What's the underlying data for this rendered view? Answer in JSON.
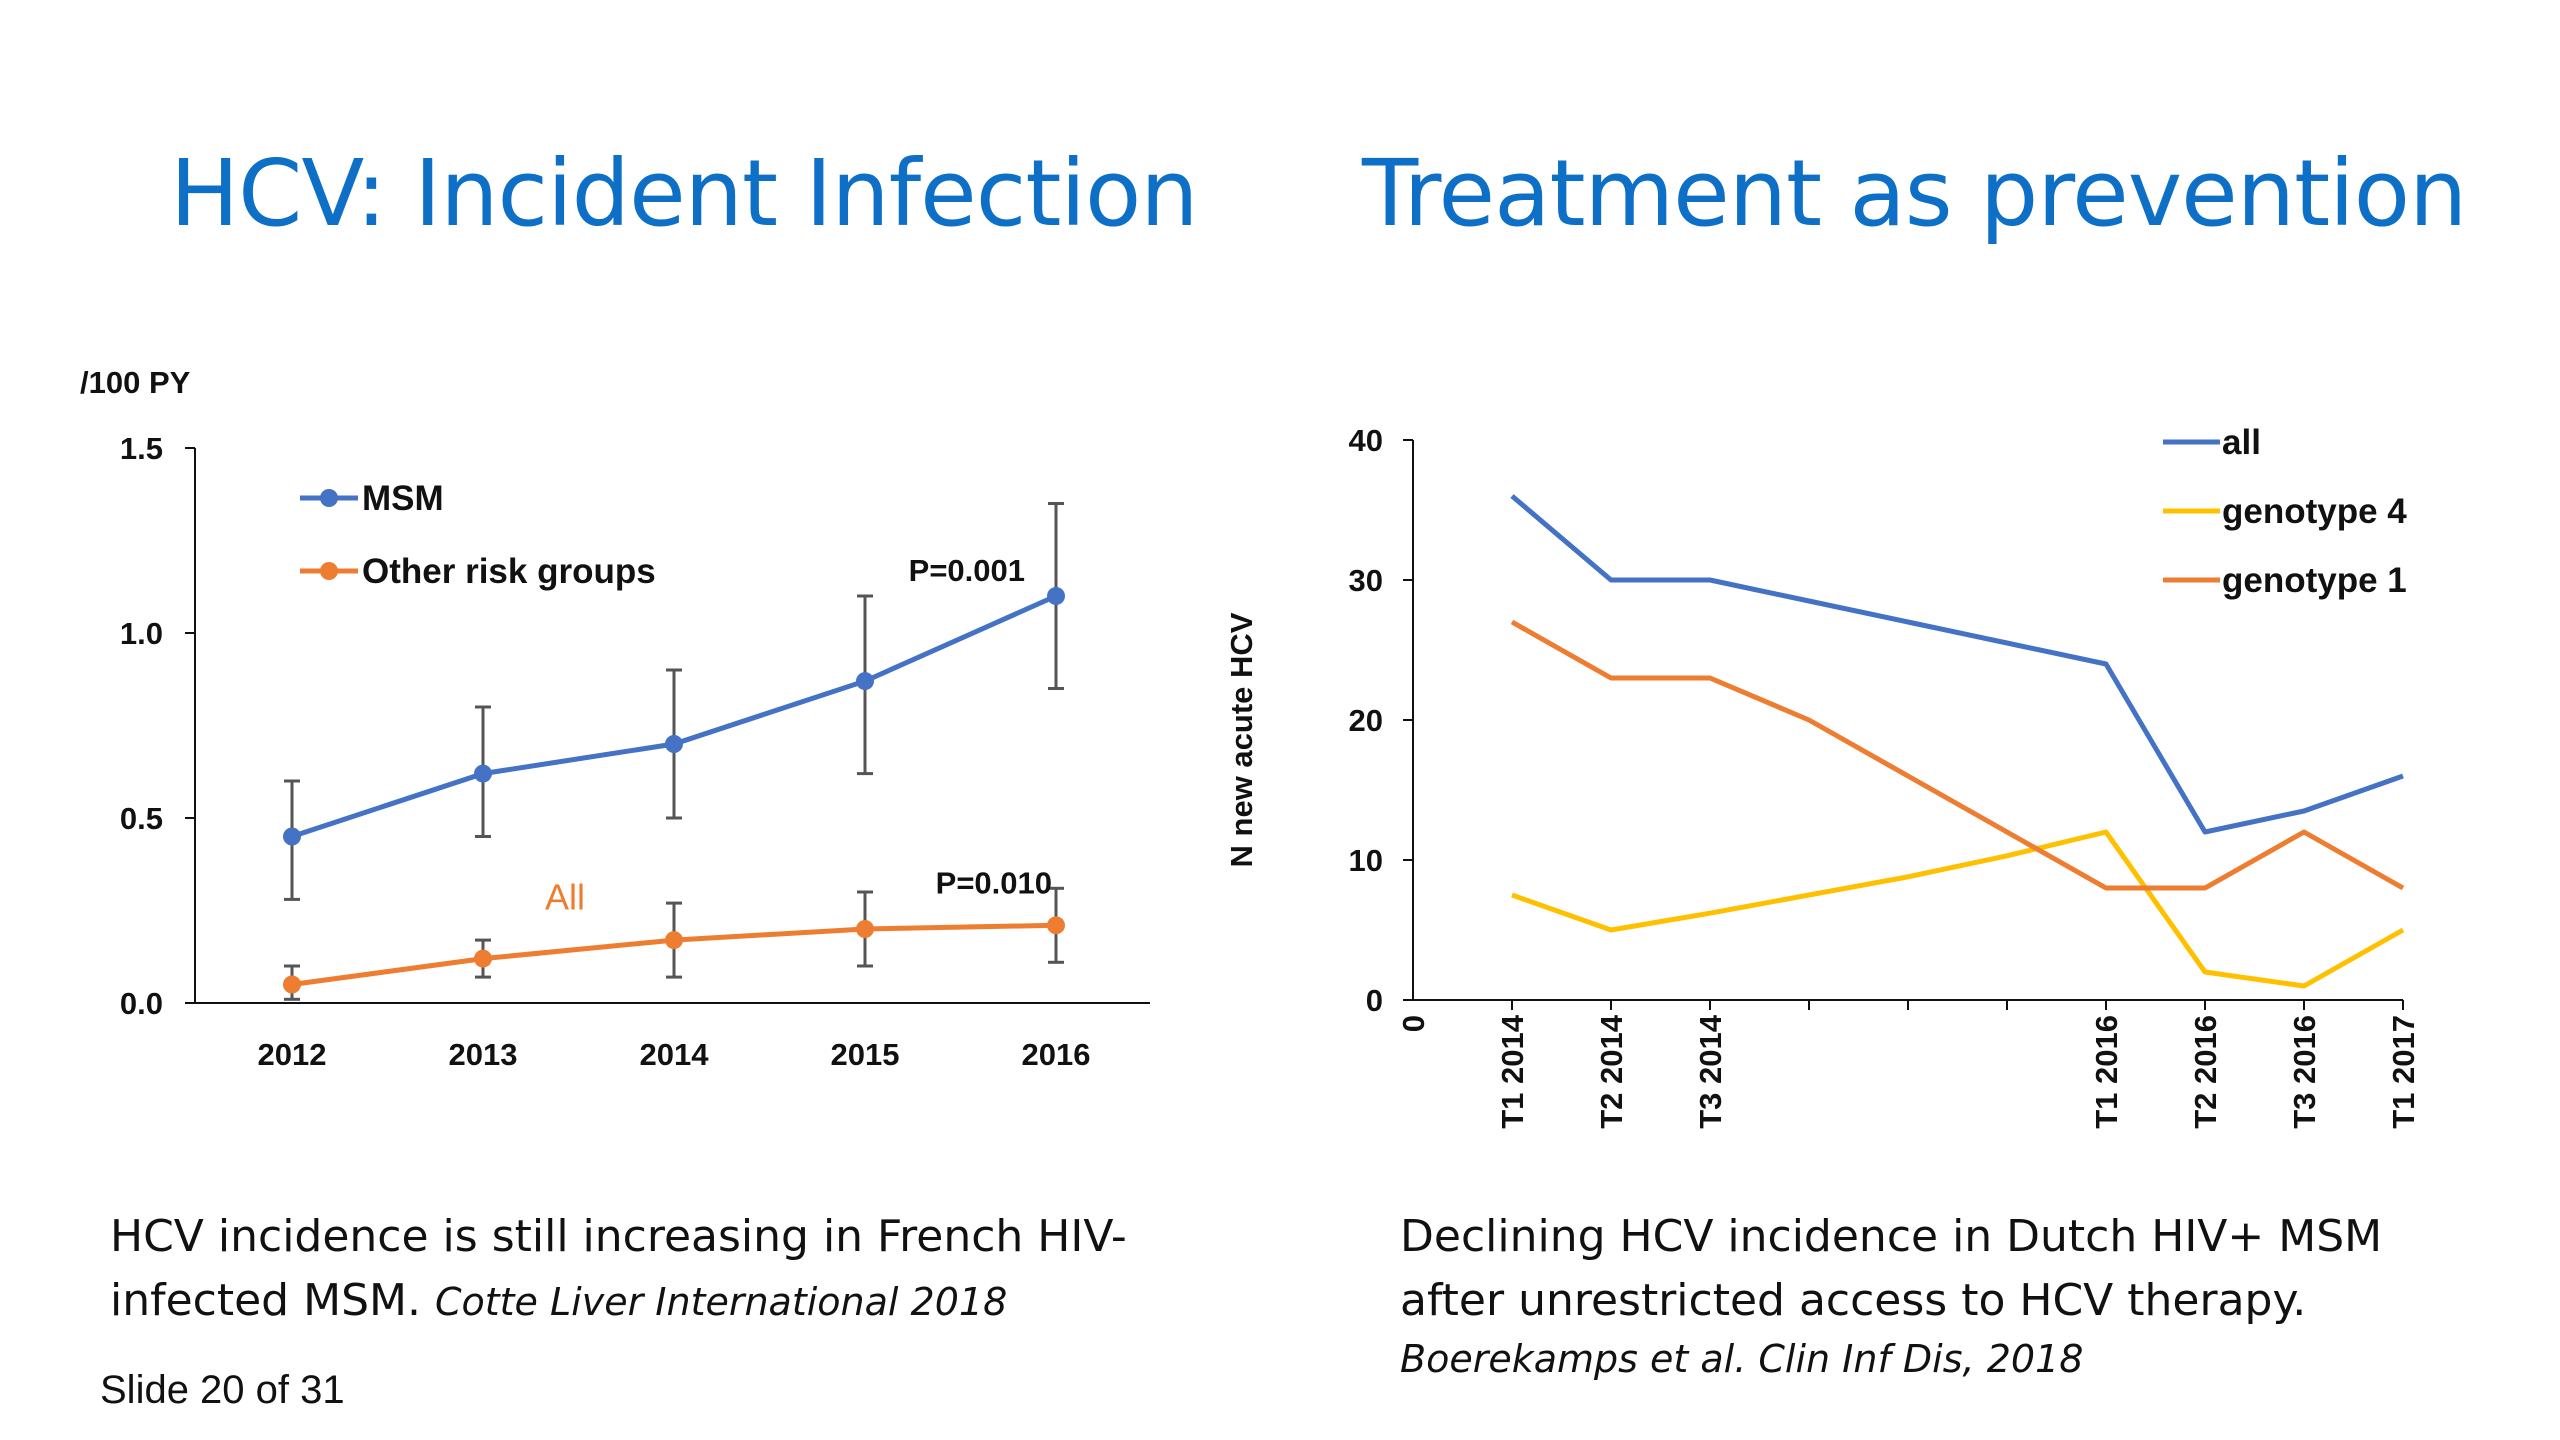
{
  "titles": {
    "left": "HCV:  Incident Infection",
    "right": "Treatment as prevention"
  },
  "captions": {
    "left_text": "HCV incidence is still increasing in French HIV-infected MSM. ",
    "left_cite": "Cotte Liver International 2018",
    "right_text": "Declining HCV incidence in Dutch HIV+ MSM after unrestricted access to HCV therapy.",
    "right_cite": "Boerekamps et al. Clin Inf Dis, 2018"
  },
  "footer": {
    "slide_counter": "Slide 20 of 31"
  },
  "chart_data": [
    {
      "type": "line",
      "ylabel": "/100 PY",
      "ylim": [
        0,
        1.5
      ],
      "yticks": [
        "0.0",
        "0.5",
        "1.0",
        "1.5"
      ],
      "categories": [
        "2012",
        "2013",
        "2014",
        "2015",
        "2016"
      ],
      "legend_position": "top-left",
      "grid": false,
      "series": [
        {
          "name": "MSM",
          "color": "#4472C4",
          "values": [
            0.45,
            0.62,
            0.7,
            0.87,
            1.1
          ],
          "ci_low": [
            0.28,
            0.45,
            0.5,
            0.62,
            0.85
          ],
          "ci_high": [
            0.6,
            0.8,
            0.9,
            1.1,
            1.35
          ]
        },
        {
          "name": "Other risk groups",
          "color": "#ED7D31",
          "values": [
            0.05,
            0.12,
            0.17,
            0.2,
            0.21
          ],
          "ci_low": [
            0.01,
            0.07,
            0.07,
            0.1,
            0.11
          ],
          "ci_high": [
            0.1,
            0.17,
            0.27,
            0.3,
            0.31
          ]
        }
      ],
      "annotations": [
        {
          "text": "P=0.001",
          "category": "2016",
          "y": 1.1
        },
        {
          "text": "P=0.010",
          "category": "2016",
          "y": 0.31
        },
        {
          "text": "All",
          "color": "#ED7D31",
          "category": "2013.5",
          "y": 0.28
        }
      ]
    },
    {
      "type": "line",
      "ylabel": "N new acute HCV",
      "ylim": [
        0,
        40
      ],
      "yticks": [
        "0",
        "10",
        "20",
        "30",
        "40"
      ],
      "x_origin_label": "0",
      "xticks": [
        {
          "label": "T1 2014",
          "x": 1
        },
        {
          "label": "T2 2014",
          "x": 2
        },
        {
          "label": "T3 2014",
          "x": 3
        },
        {
          "label": "",
          "x": 4
        },
        {
          "label": "",
          "x": 5
        },
        {
          "label": "",
          "x": 6
        },
        {
          "label": "T1 2016",
          "x": 7
        },
        {
          "label": "T2 2016",
          "x": 8
        },
        {
          "label": "T3 2016",
          "x": 9
        },
        {
          "label": "T1 2017",
          "x": 10
        }
      ],
      "xlim": [
        0,
        10
      ],
      "legend_position": "top-right",
      "grid": false,
      "series": [
        {
          "name": "all",
          "color": "#4472C4",
          "x": [
            1,
            2,
            3,
            4,
            5,
            6,
            7,
            8,
            9,
            10
          ],
          "values": [
            36,
            30,
            30,
            28.5,
            27,
            25.5,
            24,
            12,
            13.5,
            16
          ]
        },
        {
          "name": "genotype 4",
          "color": "#FFC000",
          "x": [
            1,
            2,
            3,
            4,
            5,
            6,
            7,
            8,
            9,
            10
          ],
          "values": [
            7.5,
            5,
            6.2,
            7.5,
            8.8,
            10.3,
            12,
            2,
            1,
            5
          ]
        },
        {
          "name": "genotype 1",
          "color": "#ED7D31",
          "x": [
            1,
            2,
            3,
            4,
            5,
            6,
            7,
            8,
            9,
            10
          ],
          "values": [
            27,
            23,
            23,
            20,
            16,
            12,
            8,
            8,
            12,
            8
          ]
        }
      ]
    }
  ]
}
